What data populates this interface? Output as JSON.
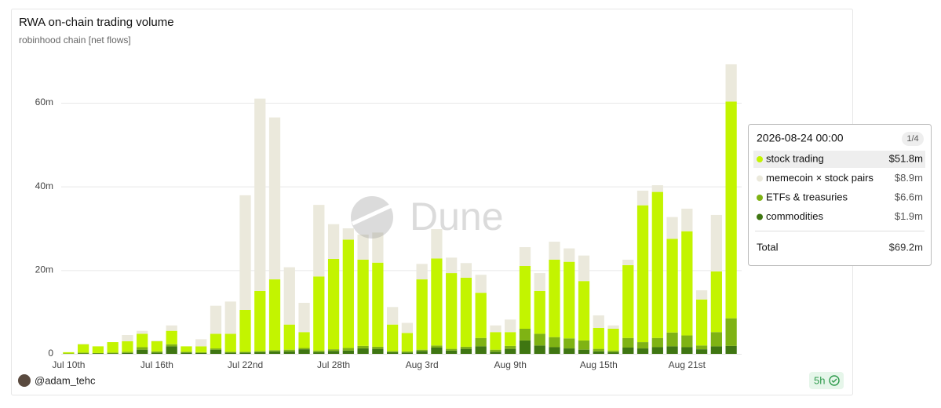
{
  "chart_data": {
    "type": "stacked-bar",
    "title": "RWA on-chain trading volume",
    "subtitle": "robinhood chain [net flows]",
    "categories": [
      "Jul 10th",
      null,
      null,
      null,
      null,
      null,
      "Jul 16th",
      null,
      null,
      null,
      null,
      null,
      "Jul 22nd",
      null,
      null,
      null,
      null,
      null,
      "Jul 28th",
      null,
      null,
      null,
      null,
      null,
      "Aug 3rd",
      null,
      null,
      null,
      null,
      null,
      "Aug 9th",
      null,
      null,
      null,
      null,
      null,
      "Aug 15th",
      null,
      null,
      null,
      null,
      null,
      "Aug 21st",
      null,
      null,
      null
    ],
    "series": [
      {
        "name": "stock trading",
        "color": "#c3f400",
        "values": [
          0.3,
          2.0,
          1.6,
          2.5,
          2.5,
          3.2,
          2.4,
          3.2,
          1.3,
          1.4,
          3.5,
          4.3,
          10.0,
          14.3,
          16.9,
          6.0,
          3.8,
          17.7,
          21.6,
          25.9,
          20.6,
          20.1,
          6.3,
          4.4,
          16.8,
          20.8,
          18.1,
          16.5,
          10.8,
          4.2,
          3.3,
          15.0,
          10.2,
          18.5,
          18.3,
          14.2,
          5.0,
          5.2,
          17.4,
          32.7,
          34.9,
          22.4,
          24.9,
          11.0,
          14.5,
          51.8
        ]
      },
      {
        "name": "memecoin × stock pairs",
        "color": "#ebe9dc",
        "values": [
          0,
          0.1,
          0,
          0,
          1.5,
          0.7,
          0.2,
          1.3,
          0,
          1.7,
          6.7,
          7.7,
          27.4,
          46,
          38.7,
          13.7,
          7,
          17.1,
          8.3,
          2.7,
          6,
          7.2,
          4.2,
          2.4,
          3.7,
          7,
          3.7,
          3.5,
          4.3,
          1.6,
          3,
          4.5,
          4.3,
          4.3,
          3.2,
          6.1,
          3,
          0.8,
          1.3,
          3.5,
          1.6,
          5.2,
          5.4,
          2.2,
          13.5,
          8.9
        ]
      },
      {
        "name": "ETFs & treasuries",
        "color": "#7fb314",
        "values": [
          0.1,
          0.2,
          0.1,
          0.2,
          0.3,
          0.6,
          0.3,
          0.5,
          0.2,
          0.2,
          0.3,
          0.2,
          0.2,
          0.3,
          0.3,
          0.4,
          0.3,
          0.4,
          0.4,
          0.6,
          0.6,
          0.5,
          0.3,
          0.3,
          0.3,
          0.5,
          0.4,
          0.5,
          2.0,
          0.5,
          0.7,
          2.8,
          2.8,
          2.4,
          2.4,
          2.2,
          0.6,
          0.4,
          2.3,
          1.5,
          2.2,
          3.3,
          2.8,
          0.9,
          3.4,
          6.6
        ]
      },
      {
        "name": "commodities",
        "color": "#3f7612",
        "values": [
          0,
          0.1,
          0.1,
          0.1,
          0.2,
          1.0,
          0.3,
          1.8,
          0.3,
          0.2,
          1.0,
          0.3,
          0.3,
          0.4,
          0.6,
          0.6,
          1.1,
          0.4,
          0.7,
          0.8,
          1.3,
          1.2,
          0.4,
          0.3,
          0.7,
          1.5,
          0.8,
          1.2,
          1.8,
          0.5,
          1.2,
          3.2,
          2.0,
          1.6,
          1.3,
          1.0,
          0.6,
          0.4,
          1.5,
          1.3,
          1.6,
          1.8,
          1.6,
          1.1,
          1.8,
          1.9
        ]
      }
    ],
    "ylim": [
      0,
      72
    ],
    "yticks": [
      0,
      {
        "value": 20,
        "label": "20m"
      },
      {
        "value": 40,
        "label": "40m"
      },
      {
        "value": 60,
        "label": "60m"
      }
    ],
    "grid": true,
    "tooltip": {
      "title": "2026-08-24 00:00",
      "page": "1/4",
      "value_labels": [
        "$51.8m",
        "$8.9m",
        "$6.6m",
        "$1.9m"
      ],
      "total_label": "Total",
      "total": "$69.2m"
    }
  },
  "watermark": "Dune",
  "author": "@adam_tehc",
  "age": "5h"
}
